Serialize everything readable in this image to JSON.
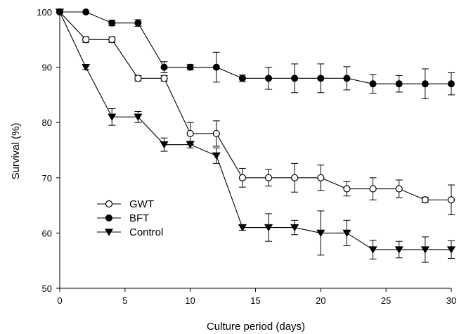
{
  "chart_data": {
    "type": "line",
    "title": "",
    "xlabel": "Culture period (days)",
    "ylabel": "Survival (%)",
    "xlim": [
      0,
      30
    ],
    "ylim": [
      50,
      100
    ],
    "x_ticks": [
      0,
      5,
      10,
      15,
      20,
      25,
      30
    ],
    "y_ticks": [
      50,
      60,
      70,
      80,
      90,
      100
    ],
    "grid": false,
    "legend_position": "lower-left",
    "x": [
      0,
      2,
      4,
      6,
      8,
      10,
      12,
      14,
      16,
      18,
      20,
      22,
      24,
      26,
      28,
      30
    ],
    "series": [
      {
        "name": "GWT",
        "marker": "open-circle",
        "color": "#000000",
        "values": [
          100,
          95,
          95,
          88,
          88,
          78,
          78,
          70,
          70,
          70,
          70,
          68,
          68,
          68,
          66,
          66
        ],
        "errors": [
          0,
          0.5,
          0.5,
          0.5,
          0.5,
          2,
          2.3,
          1.7,
          1.5,
          2.6,
          2.3,
          1.3,
          2,
          1.6,
          0.5,
          2.7
        ]
      },
      {
        "name": "BFT",
        "marker": "filled-circle",
        "color": "#000000",
        "values": [
          100,
          100,
          98,
          98,
          90,
          90,
          90,
          88,
          88,
          88,
          88,
          88,
          87,
          87,
          87,
          87
        ],
        "errors": [
          0,
          0,
          0.5,
          0.6,
          1,
          0.5,
          2.7,
          0.6,
          2,
          2.6,
          2.6,
          2.1,
          1.7,
          1.5,
          2.7,
          2
        ]
      },
      {
        "name": "Control",
        "marker": "filled-triangle-down",
        "color": "#000000",
        "values": [
          100,
          90,
          81,
          81,
          76,
          76,
          74,
          61,
          61,
          61,
          60,
          60,
          57,
          57,
          57,
          57
        ],
        "errors": [
          0,
          0.4,
          1.5,
          1,
          1.2,
          0.6,
          1.4,
          0.5,
          2.5,
          1.3,
          4,
          2.3,
          1.7,
          1.5,
          2.3,
          1.6
        ]
      }
    ]
  }
}
